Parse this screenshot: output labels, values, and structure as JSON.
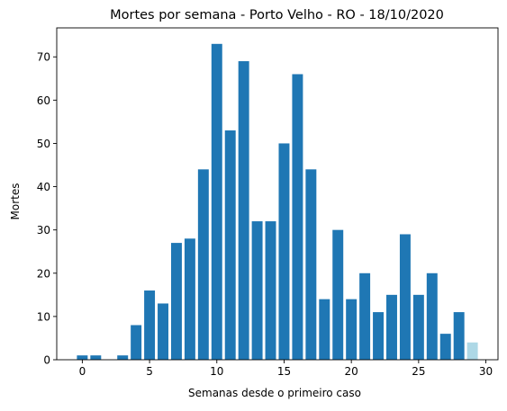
{
  "chart_data": {
    "type": "bar",
    "title": "Mortes por semana - Porto Velho - RO - 18/10/2020",
    "xlabel": "Semanas desde o primeiro caso",
    "ylabel": "Mortes",
    "x": [
      0,
      1,
      2,
      3,
      4,
      5,
      6,
      7,
      8,
      9,
      10,
      11,
      12,
      13,
      14,
      15,
      16,
      17,
      18,
      19,
      20,
      21,
      22,
      23,
      24,
      25,
      26,
      27,
      28,
      29
    ],
    "values": [
      1,
      1,
      0,
      1,
      8,
      16,
      13,
      27,
      28,
      44,
      73,
      53,
      69,
      32,
      32,
      50,
      66,
      44,
      14,
      30,
      14,
      20,
      11,
      15,
      29,
      15,
      20,
      6,
      11,
      4
    ],
    "xlim": [
      -1.9,
      30.9
    ],
    "ylim": [
      0,
      76.7
    ],
    "xticks": [
      0,
      5,
      10,
      15,
      20,
      25,
      30
    ],
    "yticks": [
      0,
      10,
      20,
      30,
      40,
      50,
      60,
      70
    ],
    "grid": false,
    "colors": {
      "bar": "#1f77b4",
      "last_bar": "#add8e6",
      "axis": "#000000"
    }
  }
}
